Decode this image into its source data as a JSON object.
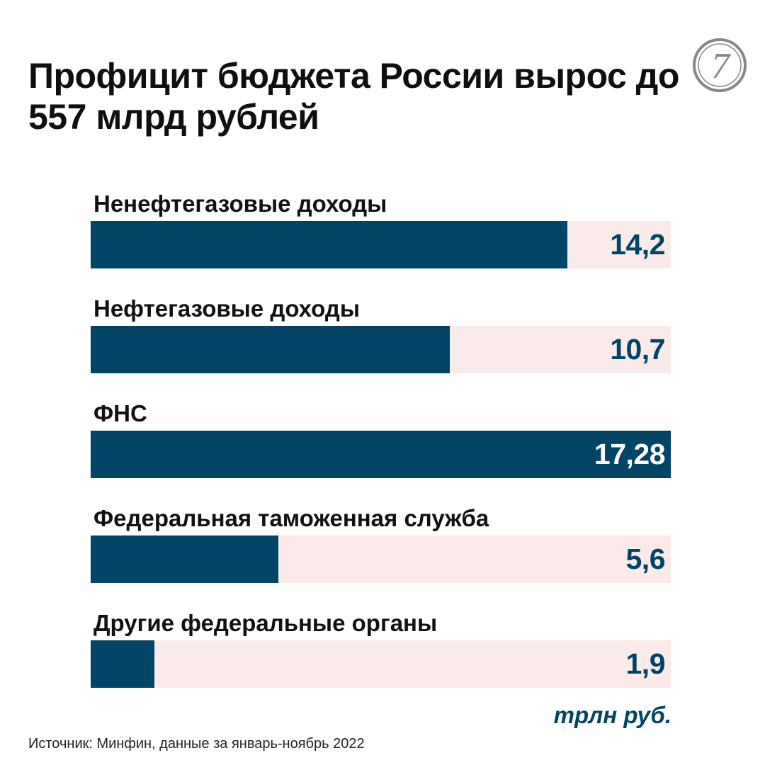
{
  "header": {
    "title": "Профицит бюджета России вырос до 557 млрд рублей"
  },
  "logo": {
    "icon": "publisher-monogram-logo",
    "glyph": "7"
  },
  "colors": {
    "bar": "#004466",
    "track": "#fbeaea",
    "value_on_track": "#004466",
    "value_on_bar": "#ffffff"
  },
  "chart_data": {
    "type": "bar",
    "orientation": "horizontal",
    "title": "Профицит бюджета России вырос до 557 млрд рублей",
    "categories": [
      "Ненефтегазовые доходы",
      "Нефтегазовые доходы",
      "ФНС",
      "Федеральная таможенная служба",
      "Другие федеральные органы"
    ],
    "values": [
      14.2,
      10.7,
      17.28,
      5.6,
      1.9
    ],
    "value_labels": [
      "14,2",
      "10,7",
      "17,28",
      "5,6",
      "1,9"
    ],
    "xlim": [
      0,
      17.28
    ],
    "unit": "трлн руб.",
    "grid": false
  },
  "footer": {
    "source": "Источник: Минфин, данные за январь-ноябрь 2022"
  }
}
